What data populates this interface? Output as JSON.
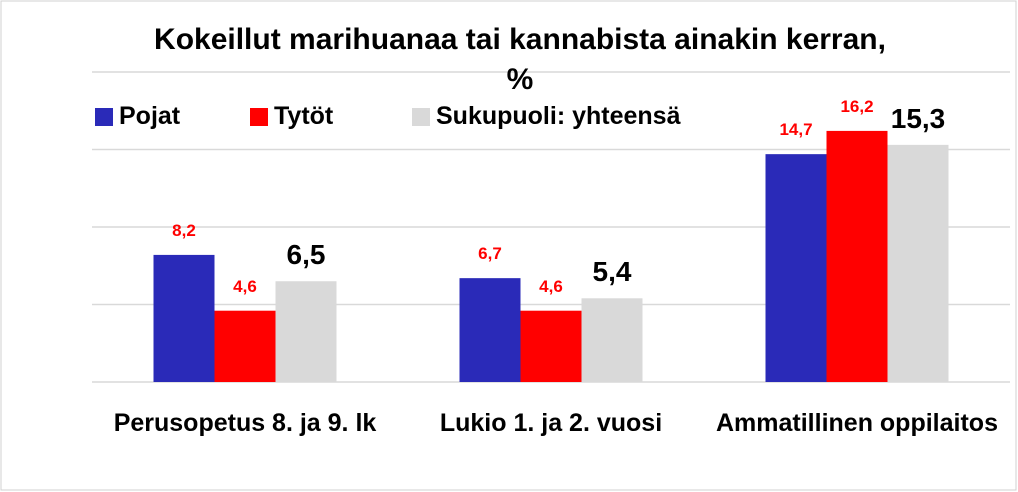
{
  "chart_data": {
    "type": "bar",
    "title": "Kokeillut marihuanaa tai kannabista ainakin kerran, %",
    "categories": [
      "Perusopetus 8. ja 9. lk",
      "Lukio 1. ja 2. vuosi",
      "Ammatillinen oppilaitos"
    ],
    "series": [
      {
        "name": "Pojat",
        "color": "#2a2ab8",
        "values": [
          8.2,
          6.7,
          14.7
        ],
        "value_labels": [
          "8,2",
          "6,7",
          "14,7"
        ]
      },
      {
        "name": "Tytöt",
        "color": "#ff0000",
        "values": [
          4.6,
          4.6,
          16.2
        ],
        "value_labels": [
          "4,6",
          "4,6",
          "16,2"
        ]
      },
      {
        "name": "Sukupuoli: yhteensä",
        "color": "#d9d9d9",
        "values": [
          6.5,
          5.4,
          15.3
        ],
        "value_labels": [
          "6,5",
          "5,4",
          "15,3"
        ]
      }
    ],
    "ylim": [
      0,
      20
    ],
    "yticks": [
      0,
      5,
      10,
      15,
      20
    ],
    "grid": true,
    "legend": "top-left"
  }
}
